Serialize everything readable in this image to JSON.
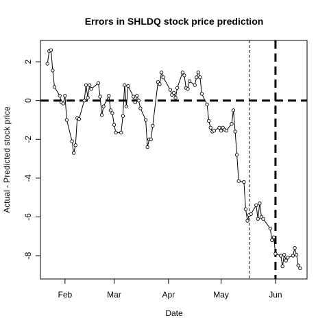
{
  "chart_data": {
    "type": "line",
    "title": "Errors in SHLDQ stock price prediction",
    "xlabel": "Date",
    "ylabel": "Actual - Predicted stock price",
    "xlim": [
      "2018-01-18",
      "2018-06-19"
    ],
    "ylim": [
      -9.2,
      3.1
    ],
    "x_ticks": [
      {
        "date": "2018-02-01",
        "label": "Feb"
      },
      {
        "date": "2018-03-01",
        "label": "Mar"
      },
      {
        "date": "2018-04-01",
        "label": "Apr"
      },
      {
        "date": "2018-05-01",
        "label": "May"
      },
      {
        "date": "2018-06-01",
        "label": "Jun"
      }
    ],
    "y_ticks": [
      2,
      0,
      -2,
      -4,
      -6,
      -8
    ],
    "reference_lines": [
      {
        "orientation": "horizontal",
        "value": 0,
        "style": "thick-dashed"
      },
      {
        "orientation": "vertical",
        "date": "2018-05-17",
        "style": "thin-dashed"
      },
      {
        "orientation": "vertical",
        "date": "2018-06-01",
        "style": "thick-dashed"
      }
    ],
    "grid": false,
    "series": [
      {
        "x": [
          "2018-01-22",
          "2018-01-23",
          "2018-01-24",
          "2018-01-25",
          "2018-01-26",
          "2018-01-29",
          "2018-01-30",
          "2018-01-31",
          "2018-02-01",
          "2018-02-02",
          "2018-02-05",
          "2018-02-06",
          "2018-02-07",
          "2018-02-08",
          "2018-02-09",
          "2018-02-12",
          "2018-02-13",
          "2018-02-14",
          "2018-02-15",
          "2018-02-16",
          "2018-02-20",
          "2018-02-21",
          "2018-02-22",
          "2018-02-23",
          "2018-02-26",
          "2018-02-27",
          "2018-02-28",
          "2018-03-01",
          "2018-03-02",
          "2018-03-05",
          "2018-03-06",
          "2018-03-07",
          "2018-03-08",
          "2018-03-09",
          "2018-03-12",
          "2018-03-13",
          "2018-03-14",
          "2018-03-15",
          "2018-03-16",
          "2018-03-19",
          "2018-03-20",
          "2018-03-21",
          "2018-03-22",
          "2018-03-23",
          "2018-03-26",
          "2018-03-27",
          "2018-03-28",
          "2018-03-29",
          "2018-04-02",
          "2018-04-03",
          "2018-04-04",
          "2018-04-05",
          "2018-04-06",
          "2018-04-09",
          "2018-04-10",
          "2018-04-11",
          "2018-04-12",
          "2018-04-13",
          "2018-04-16",
          "2018-04-17",
          "2018-04-18",
          "2018-04-19",
          "2018-04-20",
          "2018-04-23",
          "2018-04-24",
          "2018-04-25",
          "2018-04-26",
          "2018-04-27",
          "2018-04-30",
          "2018-05-01",
          "2018-05-02",
          "2018-05-03",
          "2018-05-04",
          "2018-05-07",
          "2018-05-08",
          "2018-05-09",
          "2018-05-10",
          "2018-05-11",
          "2018-05-14",
          "2018-05-15",
          "2018-05-16",
          "2018-05-17",
          "2018-05-18",
          "2018-05-21",
          "2018-05-22",
          "2018-05-23",
          "2018-05-24",
          "2018-05-25",
          "2018-05-29",
          "2018-05-30",
          "2018-05-31",
          "2018-06-01",
          "2018-06-04",
          "2018-06-05",
          "2018-06-06",
          "2018-06-07",
          "2018-06-08",
          "2018-06-11",
          "2018-06-12",
          "2018-06-13",
          "2018-06-14",
          "2018-06-15"
        ],
        "values": [
          1.9,
          2.55,
          2.6,
          1.55,
          0.7,
          0.25,
          -0.1,
          -0.15,
          0.25,
          -1.0,
          -2.1,
          -2.7,
          -2.3,
          -0.9,
          -0.95,
          0.0,
          0.8,
          0.15,
          0.8,
          0.6,
          0.9,
          0.2,
          -0.75,
          -0.3,
          0.25,
          -0.5,
          -0.65,
          -1.25,
          -1.65,
          -1.65,
          -0.8,
          0.8,
          -0.3,
          0.75,
          0.2,
          -0.1,
          0.25,
          0.0,
          -0.4,
          -1.0,
          -2.4,
          -2.0,
          -2.0,
          -1.3,
          0.95,
          0.85,
          1.45,
          1.2,
          0.55,
          0.3,
          0.4,
          0.15,
          0.65,
          1.45,
          1.3,
          0.65,
          0.6,
          1.0,
          0.8,
          1.2,
          1.45,
          1.2,
          0.35,
          -0.2,
          -1.05,
          -1.4,
          -1.6,
          -1.55,
          -1.4,
          -1.55,
          -1.4,
          -1.5,
          -1.55,
          -1.2,
          -0.5,
          -1.6,
          -2.8,
          -4.15,
          -4.2,
          -5.6,
          -6.2,
          -5.9,
          -5.85,
          -5.4,
          -6.1,
          -5.3,
          -6.0,
          -6.1,
          -6.6,
          -7.2,
          -7.05,
          -7.9,
          -8.0,
          -8.55,
          -7.95,
          -8.25,
          -8.1,
          -8.0,
          -7.6,
          -7.95,
          -8.5,
          -8.65
        ]
      }
    ]
  }
}
